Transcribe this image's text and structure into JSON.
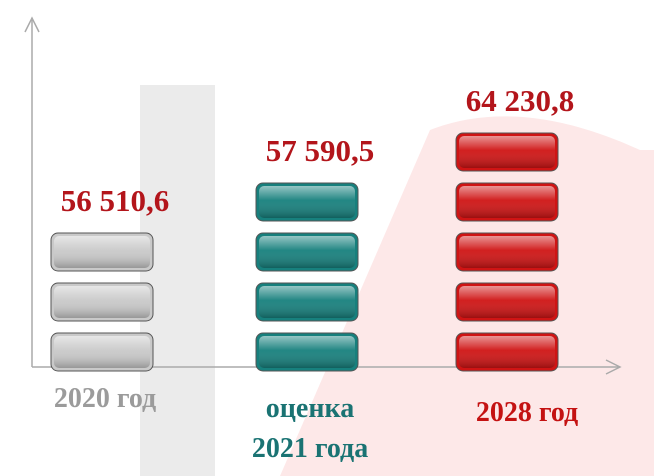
{
  "chart_data": {
    "type": "block-stack",
    "categories": [
      "2020 год",
      [
        "оценка",
        "2021 года"
      ],
      "2028 год"
    ],
    "values": [
      56510.6,
      57590.5,
      64230.8
    ],
    "value_labels": [
      "56 510,6",
      "57 590,5",
      "64 230,8"
    ],
    "blocks": [
      3,
      4,
      5
    ],
    "colors": [
      "#c9c9c9",
      "#17807d",
      "#cf1414"
    ],
    "label_colors": [
      "#9b9b9b",
      "#1a7373",
      "#c41212"
    ]
  }
}
